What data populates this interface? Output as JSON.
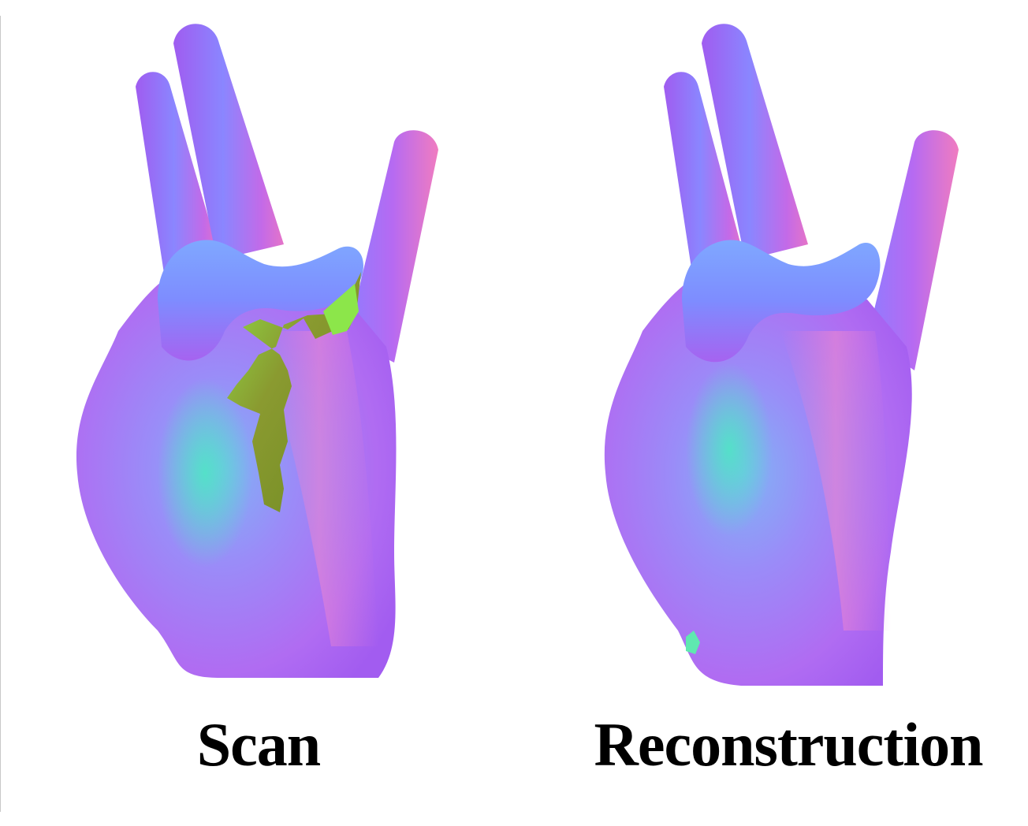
{
  "panels": [
    {
      "id": "scan",
      "caption": "Scan",
      "has_missing_region": true
    },
    {
      "id": "reconstruction",
      "caption": "Reconstruction",
      "has_missing_region": false
    }
  ],
  "colors": {
    "normal_purple": "#a866f5",
    "normal_blue": "#7f8cff",
    "normal_magenta": "#e46ad6",
    "normal_teal": "#4fe0c8",
    "hole_green": "#7a8c2a",
    "hole_bright": "#8ae64a"
  }
}
